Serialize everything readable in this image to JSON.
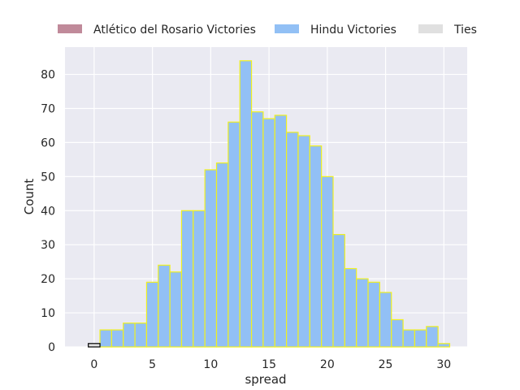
{
  "chart_data": {
    "type": "bar",
    "xlabel": "spread",
    "ylabel": "Count",
    "xlim": [
      -2.5,
      32.0
    ],
    "ylim": [
      0,
      88
    ],
    "xticks": [
      0,
      5,
      10,
      15,
      20,
      25,
      30
    ],
    "yticks": [
      0,
      10,
      20,
      30,
      40,
      50,
      60,
      70,
      80
    ],
    "grid": true,
    "legend_position": "top",
    "series": [
      {
        "name": "Atlético del Rosario Victories",
        "color": "#c08a9a",
        "edge": "#000000",
        "bins": [],
        "values": []
      },
      {
        "name": "Hindu Victories",
        "color": "#92c0f5",
        "edge": "#f0f020",
        "bins": [
          0.5,
          1.5,
          2.5,
          3.5,
          4.5,
          5.5,
          6.5,
          7.5,
          8.5,
          9.5,
          10.5,
          11.5,
          12.5,
          13.5,
          14.5,
          15.5,
          16.5,
          17.5,
          18.5,
          19.5,
          20.5,
          21.5,
          22.5,
          23.5,
          24.5,
          25.5,
          26.5,
          27.5,
          28.5,
          29.5,
          30.5
        ],
        "values": [
          5,
          5,
          7,
          7,
          19,
          24,
          22,
          40,
          40,
          52,
          54,
          66,
          84,
          69,
          67,
          68,
          63,
          62,
          59,
          50,
          33,
          23,
          20,
          19,
          16,
          8,
          5,
          5,
          6,
          1
        ]
      },
      {
        "name": "Ties",
        "color": "#e0e0e0",
        "edge": "#000000",
        "bins": [
          -0.5,
          0.5
        ],
        "values": [
          1
        ]
      }
    ]
  }
}
